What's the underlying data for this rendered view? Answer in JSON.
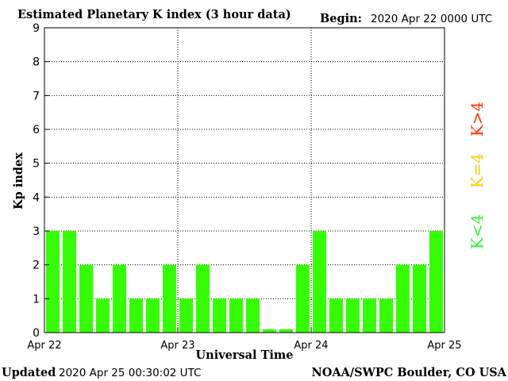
{
  "header": {
    "title": "Estimated Planetary K index (3 hour data)",
    "begin_label": "Begin:",
    "begin_value": "2020 Apr 22 0000 UTC"
  },
  "footer": {
    "updated_label": "Updated",
    "updated_value": "2020 Apr 25 00:30:02 UTC",
    "source": "NOAA/SWPC Boulder, CO USA"
  },
  "legend": {
    "k_gt4": "K>4",
    "k_eq4": "K=4",
    "k_lt4": "K<4",
    "colors": {
      "k_gt4": "#ff3300",
      "k_eq4": "#ffcc00",
      "k_lt4": "#33ee33"
    }
  },
  "chart_data": {
    "type": "bar",
    "title": "Estimated Planetary K index (3 hour data)",
    "xlabel": "Universal Time",
    "ylabel": "Kp index",
    "ylim": [
      0,
      9
    ],
    "yticks": [
      0,
      1,
      2,
      3,
      4,
      5,
      6,
      7,
      8,
      9
    ],
    "xtick_labels": [
      "Apr 22",
      "Apr 23",
      "Apr 24",
      "Apr 25"
    ],
    "grid": true,
    "bar_color": "#33ff00",
    "values": [
      3,
      3,
      2,
      1,
      2,
      1,
      1,
      2,
      1,
      2,
      1,
      1,
      1,
      0.1,
      0.1,
      2,
      3,
      1,
      1,
      1,
      1,
      2,
      2,
      3
    ]
  }
}
